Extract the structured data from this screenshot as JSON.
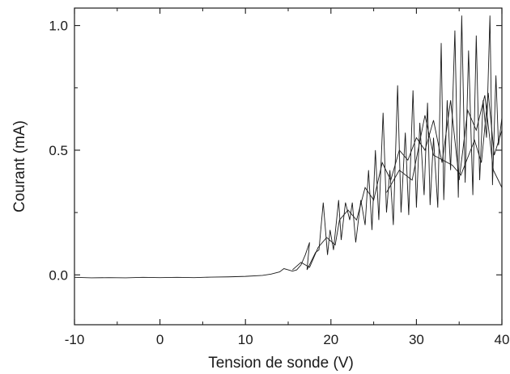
{
  "chart_data": {
    "type": "line",
    "title": "",
    "xlabel": "Tension de sonde (V)",
    "ylabel": "Courant (mA)",
    "xlim": [
      -10,
      40
    ],
    "ylim": [
      -0.2,
      1.07
    ],
    "xticks": [
      -10,
      0,
      10,
      20,
      30,
      40
    ],
    "xtick_labels": [
      "-10",
      "0",
      "10",
      "20",
      "30",
      "40"
    ],
    "yticks": [
      0.0,
      0.5,
      1.0
    ],
    "ytick_labels": [
      "0.0",
      "0.5",
      "1.0"
    ],
    "grid": false,
    "legend": "none",
    "line_color": "#1a1a1a",
    "series": [
      {
        "values": [
          [
            -10,
            -0.01
          ],
          [
            -8,
            -0.012
          ],
          [
            -6,
            -0.011
          ],
          [
            -4,
            -0.012
          ],
          [
            -2,
            -0.01
          ],
          [
            0,
            -0.011
          ],
          [
            2,
            -0.01
          ],
          [
            4,
            -0.011
          ],
          [
            6,
            -0.009
          ],
          [
            8,
            -0.008
          ],
          [
            10,
            -0.006
          ],
          [
            12,
            -0.002
          ],
          [
            13,
            0.003
          ],
          [
            14,
            0.012
          ],
          [
            14.5,
            0.025
          ],
          [
            15,
            0.02
          ],
          [
            15.5,
            0.015
          ],
          [
            16,
            0.02
          ],
          [
            16.5,
            0.04
          ],
          [
            17,
            0.08
          ],
          [
            17.5,
            0.13
          ],
          [
            17.2,
            0.02
          ],
          [
            18.2,
            0.09
          ],
          [
            18.6,
            0.1
          ],
          [
            19.1,
            0.29
          ],
          [
            19.6,
            0.08
          ],
          [
            19.9,
            0.18
          ],
          [
            20.3,
            0.1
          ],
          [
            20.9,
            0.3
          ],
          [
            21.2,
            0.14
          ],
          [
            21.7,
            0.29
          ],
          [
            22.2,
            0.22
          ],
          [
            22.5,
            0.29
          ],
          [
            22.9,
            0.13
          ],
          [
            23.5,
            0.3
          ],
          [
            24,
            0.2
          ],
          [
            24.4,
            0.42
          ],
          [
            24.8,
            0.18
          ],
          [
            25.2,
            0.5
          ],
          [
            25.6,
            0.22
          ],
          [
            26.1,
            0.65
          ],
          [
            26.5,
            0.25
          ],
          [
            26.9,
            0.42
          ],
          [
            27.3,
            0.2
          ],
          [
            27.8,
            0.76
          ],
          [
            28.2,
            0.25
          ],
          [
            28.7,
            0.57
          ],
          [
            29.1,
            0.24
          ],
          [
            29.6,
            0.74
          ],
          [
            30,
            0.27
          ],
          [
            30.4,
            0.61
          ],
          [
            30.9,
            0.32
          ],
          [
            31.3,
            0.69
          ],
          [
            31.6,
            0.28
          ],
          [
            32,
            0.55
          ],
          [
            32.5,
            0.27
          ],
          [
            32.9,
            0.93
          ],
          [
            33.2,
            0.3
          ],
          [
            33.6,
            0.7
          ],
          [
            34,
            0.42
          ],
          [
            34.5,
            0.98
          ],
          [
            34.9,
            0.31
          ],
          [
            35.3,
            1.04
          ],
          [
            35.7,
            0.37
          ],
          [
            36.1,
            0.9
          ],
          [
            36.6,
            0.32
          ],
          [
            37,
            0.96
          ],
          [
            37.4,
            0.38
          ],
          [
            37.8,
            0.7
          ],
          [
            38.2,
            0.55
          ],
          [
            38.6,
            1.04
          ],
          [
            38.9,
            0.36
          ],
          [
            39.3,
            0.8
          ],
          [
            39.6,
            0.52
          ],
          [
            40,
            0.63
          ]
        ]
      },
      {
        "values": [
          [
            15.5,
            0.02
          ],
          [
            16.5,
            0.05
          ],
          [
            17.5,
            0.03
          ],
          [
            18.5,
            0.11
          ],
          [
            19.5,
            0.15
          ],
          [
            20.5,
            0.12
          ],
          [
            21,
            0.22
          ],
          [
            22,
            0.26
          ],
          [
            23,
            0.22
          ],
          [
            24,
            0.35
          ],
          [
            25,
            0.3
          ],
          [
            26,
            0.45
          ],
          [
            27,
            0.38
          ],
          [
            28,
            0.5
          ],
          [
            29,
            0.46
          ],
          [
            30,
            0.55
          ],
          [
            31,
            0.5
          ],
          [
            32,
            0.62
          ],
          [
            33,
            0.45
          ],
          [
            34,
            0.7
          ],
          [
            35,
            0.38
          ],
          [
            36,
            0.66
          ],
          [
            37,
            0.58
          ],
          [
            38,
            0.72
          ],
          [
            39,
            0.42
          ],
          [
            40,
            0.35
          ]
        ]
      },
      {
        "values": [
          [
            26.5,
            0.33
          ],
          [
            28,
            0.42
          ],
          [
            29.5,
            0.38
          ],
          [
            31,
            0.64
          ],
          [
            32,
            0.48
          ],
          [
            34.2,
            0.44
          ],
          [
            35.2,
            0.4
          ],
          [
            36.8,
            0.54
          ],
          [
            37.6,
            0.45
          ],
          [
            38.4,
            0.73
          ],
          [
            39.1,
            0.48
          ],
          [
            40,
            0.58
          ]
        ]
      }
    ]
  }
}
